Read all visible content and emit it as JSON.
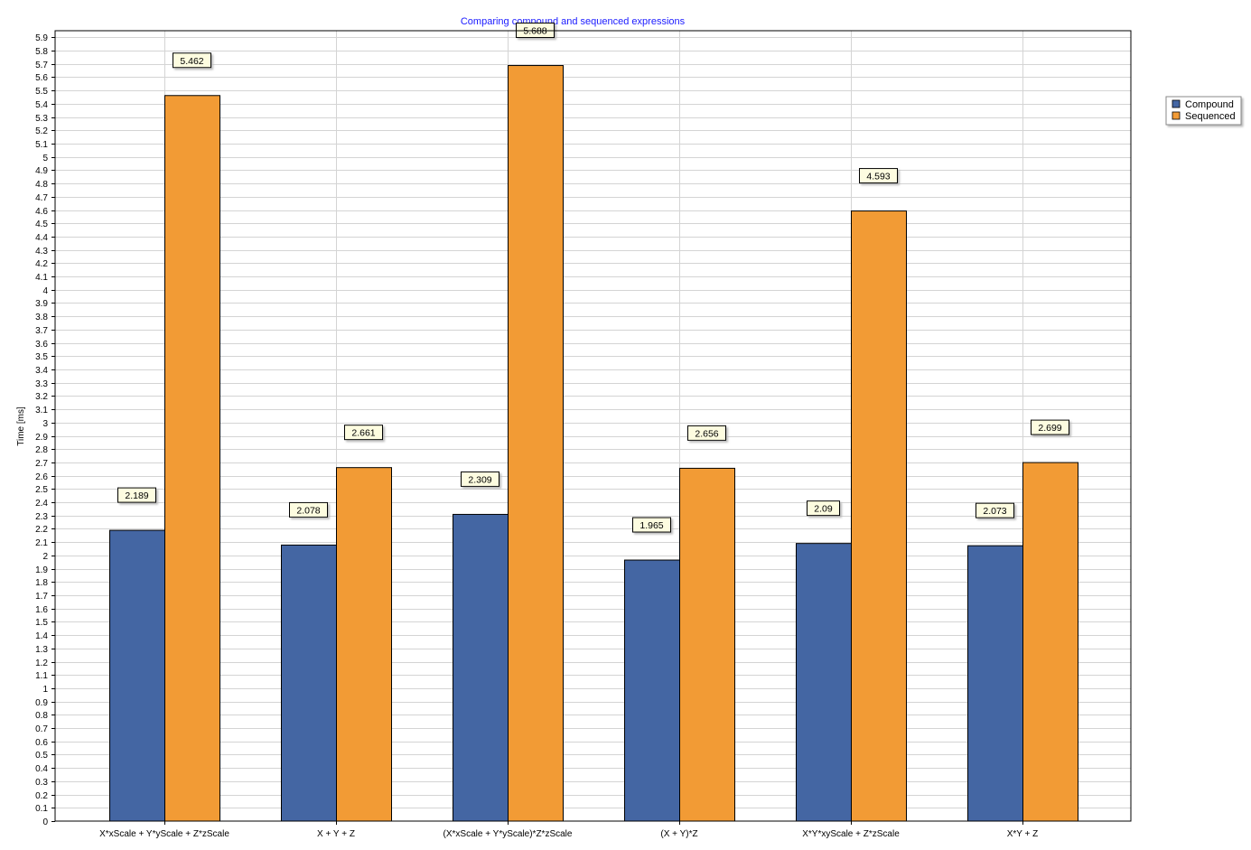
{
  "chart_data": {
    "type": "bar",
    "title": "Comparing compound and sequenced expressions",
    "xlabel": "",
    "ylabel": "Time [ms]",
    "ylim": [
      0,
      5.95
    ],
    "ytick_step": 0.1,
    "grid": true,
    "legend_position": "top-right",
    "categories": [
      "X*xScale + Y*yScale + Z*zScale",
      "X + Y + Z",
      "(X*xScale + Y*yScale)*Z*zScale",
      "(X + Y)*Z",
      "X*Y*xyScale + Z*zScale",
      "X*Y + Z"
    ],
    "series": [
      {
        "name": "Compound",
        "color": "#4466a3",
        "values": [
          2.189,
          2.078,
          2.309,
          1.965,
          2.09,
          2.073
        ]
      },
      {
        "name": "Sequenced",
        "color": "#f29b35",
        "values": [
          5.462,
          2.661,
          5.688,
          2.656,
          4.593,
          2.699
        ]
      }
    ]
  }
}
